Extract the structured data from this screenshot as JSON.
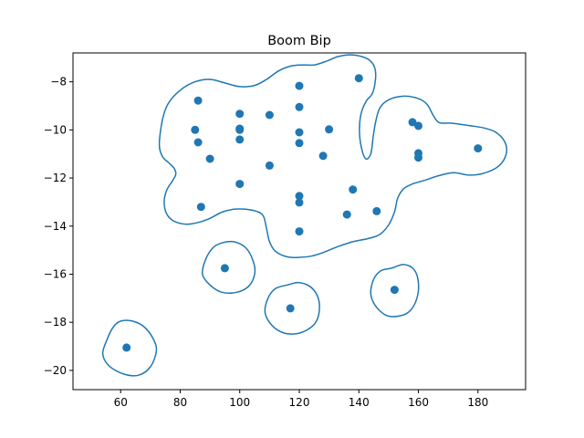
{
  "chart_data": {
    "type": "scatter",
    "title": "Boom Bip",
    "xlabel": "",
    "ylabel": "",
    "xlim": [
      44,
      196
    ],
    "ylim": [
      -20.8,
      -6.8
    ],
    "xticks": [
      60,
      80,
      100,
      120,
      140,
      160,
      180
    ],
    "yticks": [
      -20,
      -18,
      -16,
      -14,
      -12,
      -10,
      -8
    ],
    "grid": false,
    "colors": {
      "series": "#1f77b4"
    },
    "series": [
      {
        "points": [
          {
            "x": 62,
            "y": -19.05
          },
          {
            "x": 85,
            "y": -10.0
          },
          {
            "x": 86,
            "y": -8.78
          },
          {
            "x": 86,
            "y": -10.52
          },
          {
            "x": 87,
            "y": -13.2
          },
          {
            "x": 90,
            "y": -11.2
          },
          {
            "x": 95,
            "y": -15.75
          },
          {
            "x": 100,
            "y": -9.33
          },
          {
            "x": 100,
            "y": -9.95
          },
          {
            "x": 100,
            "y": -10.0
          },
          {
            "x": 100,
            "y": -10.4
          },
          {
            "x": 100,
            "y": -12.25
          },
          {
            "x": 110,
            "y": -9.38
          },
          {
            "x": 110,
            "y": -11.48
          },
          {
            "x": 117,
            "y": -17.42
          },
          {
            "x": 120,
            "y": -8.17
          },
          {
            "x": 120,
            "y": -9.05
          },
          {
            "x": 120,
            "y": -10.1
          },
          {
            "x": 120,
            "y": -10.55
          },
          {
            "x": 120,
            "y": -12.75
          },
          {
            "x": 120,
            "y": -13.02
          },
          {
            "x": 120,
            "y": -14.22
          },
          {
            "x": 128,
            "y": -11.08
          },
          {
            "x": 130,
            "y": -9.98
          },
          {
            "x": 136,
            "y": -13.52
          },
          {
            "x": 138,
            "y": -12.48
          },
          {
            "x": 140,
            "y": -7.85
          },
          {
            "x": 146,
            "y": -13.38
          },
          {
            "x": 152,
            "y": -16.65
          },
          {
            "x": 158,
            "y": -9.68
          },
          {
            "x": 160,
            "y": -9.83
          },
          {
            "x": 160,
            "y": -10.97
          },
          {
            "x": 160,
            "y": -11.15
          },
          {
            "x": 180,
            "y": -10.77
          }
        ]
      }
    ],
    "contours": [
      [
        [
          73,
          -10.6
        ],
        [
          74,
          -9.6
        ],
        [
          76,
          -8.9
        ],
        [
          80,
          -8.35
        ],
        [
          85,
          -8.0
        ],
        [
          90,
          -7.9
        ],
        [
          95,
          -8.05
        ],
        [
          100,
          -8.2
        ],
        [
          105,
          -8.15
        ],
        [
          109,
          -7.9
        ],
        [
          113,
          -7.55
        ],
        [
          117,
          -7.35
        ],
        [
          121,
          -7.3
        ],
        [
          125,
          -7.3
        ],
        [
          129,
          -7.15
        ],
        [
          133,
          -6.95
        ],
        [
          137,
          -6.88
        ],
        [
          141,
          -6.95
        ],
        [
          144,
          -7.15
        ],
        [
          145.5,
          -7.5
        ],
        [
          145.5,
          -8.0
        ],
        [
          144.5,
          -8.5
        ],
        [
          142.5,
          -8.8
        ],
        [
          140.8,
          -9.3
        ],
        [
          140.2,
          -10.0
        ],
        [
          140.8,
          -10.7
        ],
        [
          142.3,
          -11.2
        ],
        [
          144,
          -11.0
        ],
        [
          144.8,
          -10.3
        ],
        [
          145.6,
          -9.7
        ],
        [
          147,
          -9.1
        ],
        [
          150,
          -8.75
        ],
        [
          155,
          -8.6
        ],
        [
          160,
          -8.7
        ],
        [
          163,
          -8.95
        ],
        [
          165,
          -9.4
        ],
        [
          167,
          -9.7
        ],
        [
          171,
          -9.72
        ],
        [
          177,
          -9.82
        ],
        [
          182,
          -9.92
        ],
        [
          186,
          -10.1
        ],
        [
          189,
          -10.5
        ],
        [
          189.5,
          -11.0
        ],
        [
          187,
          -11.5
        ],
        [
          182,
          -11.8
        ],
        [
          177,
          -11.88
        ],
        [
          172,
          -11.78
        ],
        [
          167,
          -11.9
        ],
        [
          162,
          -12.1
        ],
        [
          158,
          -12.25
        ],
        [
          155,
          -12.45
        ],
        [
          153,
          -12.85
        ],
        [
          152,
          -13.4
        ],
        [
          150,
          -13.95
        ],
        [
          147,
          -14.35
        ],
        [
          143,
          -14.52
        ],
        [
          138,
          -14.65
        ],
        [
          133,
          -14.85
        ],
        [
          128,
          -15.1
        ],
        [
          124,
          -15.25
        ],
        [
          120,
          -15.3
        ],
        [
          116,
          -15.28
        ],
        [
          112,
          -15.05
        ],
        [
          110,
          -14.65
        ],
        [
          109,
          -14.1
        ],
        [
          108,
          -13.6
        ],
        [
          106,
          -13.4
        ],
        [
          102,
          -13.3
        ],
        [
          98,
          -13.3
        ],
        [
          94,
          -13.42
        ],
        [
          90,
          -13.68
        ],
        [
          86,
          -13.85
        ],
        [
          82,
          -13.92
        ],
        [
          78,
          -13.8
        ],
        [
          75.5,
          -13.5
        ],
        [
          74.6,
          -13.0
        ],
        [
          75.5,
          -12.5
        ],
        [
          77.5,
          -12.1
        ],
        [
          78.5,
          -11.85
        ],
        [
          78,
          -11.6
        ],
        [
          76,
          -11.35
        ],
        [
          74,
          -11.1
        ],
        [
          73,
          -10.6
        ]
      ],
      [
        [
          60,
          -17.95
        ],
        [
          64,
          -17.95
        ],
        [
          68,
          -18.2
        ],
        [
          71,
          -18.7
        ],
        [
          72,
          -19.2
        ],
        [
          70,
          -19.85
        ],
        [
          66,
          -20.2
        ],
        [
          61,
          -20.15
        ],
        [
          56,
          -19.8
        ],
        [
          54,
          -19.3
        ],
        [
          55.5,
          -18.7
        ],
        [
          57.5,
          -18.2
        ],
        [
          60,
          -17.95
        ]
      ],
      [
        [
          94,
          -14.7
        ],
        [
          98,
          -14.65
        ],
        [
          102,
          -14.9
        ],
        [
          104.5,
          -15.45
        ],
        [
          105,
          -16.0
        ],
        [
          103,
          -16.5
        ],
        [
          99,
          -16.75
        ],
        [
          94,
          -16.75
        ],
        [
          90,
          -16.45
        ],
        [
          87.5,
          -16.0
        ],
        [
          88.5,
          -15.4
        ],
        [
          91,
          -14.9
        ],
        [
          94,
          -14.7
        ]
      ],
      [
        [
          116,
          -16.45
        ],
        [
          120,
          -16.35
        ],
        [
          124,
          -16.55
        ],
        [
          126.5,
          -17.05
        ],
        [
          126.5,
          -17.7
        ],
        [
          124.5,
          -18.15
        ],
        [
          120,
          -18.45
        ],
        [
          115,
          -18.45
        ],
        [
          111,
          -18.15
        ],
        [
          108.5,
          -17.6
        ],
        [
          109.5,
          -17.0
        ],
        [
          112,
          -16.6
        ],
        [
          116,
          -16.45
        ]
      ],
      [
        [
          151,
          -15.75
        ],
        [
          155,
          -15.6
        ],
        [
          158.5,
          -15.8
        ],
        [
          160,
          -16.35
        ],
        [
          159.5,
          -17.0
        ],
        [
          157,
          -17.55
        ],
        [
          153,
          -17.75
        ],
        [
          149,
          -17.7
        ],
        [
          145.5,
          -17.3
        ],
        [
          144,
          -16.8
        ],
        [
          145,
          -16.2
        ],
        [
          147.5,
          -15.85
        ],
        [
          151,
          -15.75
        ]
      ]
    ]
  }
}
